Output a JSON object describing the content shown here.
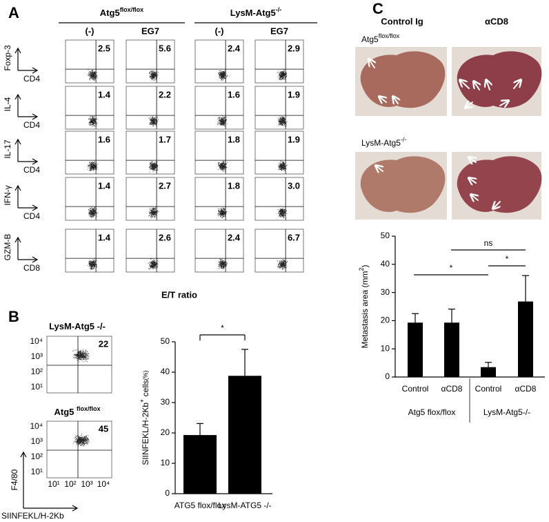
{
  "panel_a": {
    "label": "A",
    "groups": [
      {
        "name": "Atg5",
        "sup": "flox/flox"
      },
      {
        "name": "LysM-Atg5",
        "sup": "-/-"
      }
    ],
    "columns": [
      "(-)",
      "EG7",
      "(-)",
      "EG7"
    ],
    "rows": [
      {
        "marker": "Foxp-3",
        "axis": "CD4",
        "values": [
          "2.5",
          "5.6",
          "2.4",
          "2.9"
        ]
      },
      {
        "marker": "IL-4",
        "axis": "CD4",
        "values": [
          "1.4",
          "2.2",
          "1.6",
          "1.9"
        ]
      },
      {
        "marker": "IL-17",
        "axis": "CD4",
        "values": [
          "1.6",
          "1.7",
          "1.8",
          "1.9"
        ]
      },
      {
        "marker": "IFN-γ",
        "axis": "CD4",
        "values": [
          "1.4",
          "2.7",
          "1.8",
          "3.0"
        ]
      },
      {
        "marker": "GZM-B",
        "axis": "CD8",
        "values": [
          "1.4",
          "2.6",
          "2.4",
          "6.7"
        ]
      }
    ],
    "footer": "E/T ratio"
  },
  "panel_b": {
    "label": "B",
    "plots": [
      {
        "title": "LysM-Atg5 -/-",
        "value": "22"
      },
      {
        "title": "Atg5 ",
        "sup": "flox/flox",
        "value": "45"
      }
    ],
    "yticks": [
      "10⁴",
      "10³",
      "10²",
      "10¹"
    ],
    "xticks": [
      "10¹",
      "10²",
      "10³",
      "10⁴"
    ],
    "ylabel": "F4/80",
    "xlabel": "SIINFEKL/H-2Kb"
  },
  "panel_c": {
    "label": "C",
    "columns": [
      "Control Ig",
      "αCD8"
    ],
    "rows": [
      {
        "name": "Atg5",
        "sup": "flox/flox"
      },
      {
        "name": "LysM-Atg5",
        "sup": "-/-"
      }
    ]
  },
  "chart_data": [
    {
      "type": "bar",
      "categories": [
        "ATG5 flox/flox",
        "LysM-ATG5 -/-"
      ],
      "values": [
        19.3,
        38.8
      ],
      "errors": [
        3.8,
        8.7
      ],
      "color": "#000000",
      "ylim": [
        0,
        50
      ],
      "yticks": [
        0,
        10,
        20,
        30,
        40,
        50
      ],
      "ylabel": {
        "text": "SIINFEKL/H-2Kb",
        "sup": "+",
        "rest": " cells",
        "unit": "(%)"
      },
      "annotations": [
        "*"
      ]
    },
    {
      "type": "bar",
      "categories": [
        "Control",
        "αCD8",
        "Control",
        "αCD8"
      ],
      "groups": [
        "Atg5 flox/flox",
        "LysM-Atg5-/-"
      ],
      "values": [
        19.3,
        19.3,
        3.5,
        26.8
      ],
      "errors": [
        3.2,
        4.8,
        1.7,
        9.2
      ],
      "color": "#000000",
      "ylim": [
        0,
        50
      ],
      "yticks": [
        0,
        10,
        20,
        30,
        40,
        50
      ],
      "ylabel": {
        "text": "Metastasis area (mm",
        "sup": "2",
        "rest": ")"
      },
      "annotations": [
        "*",
        "ns",
        "*"
      ]
    }
  ]
}
